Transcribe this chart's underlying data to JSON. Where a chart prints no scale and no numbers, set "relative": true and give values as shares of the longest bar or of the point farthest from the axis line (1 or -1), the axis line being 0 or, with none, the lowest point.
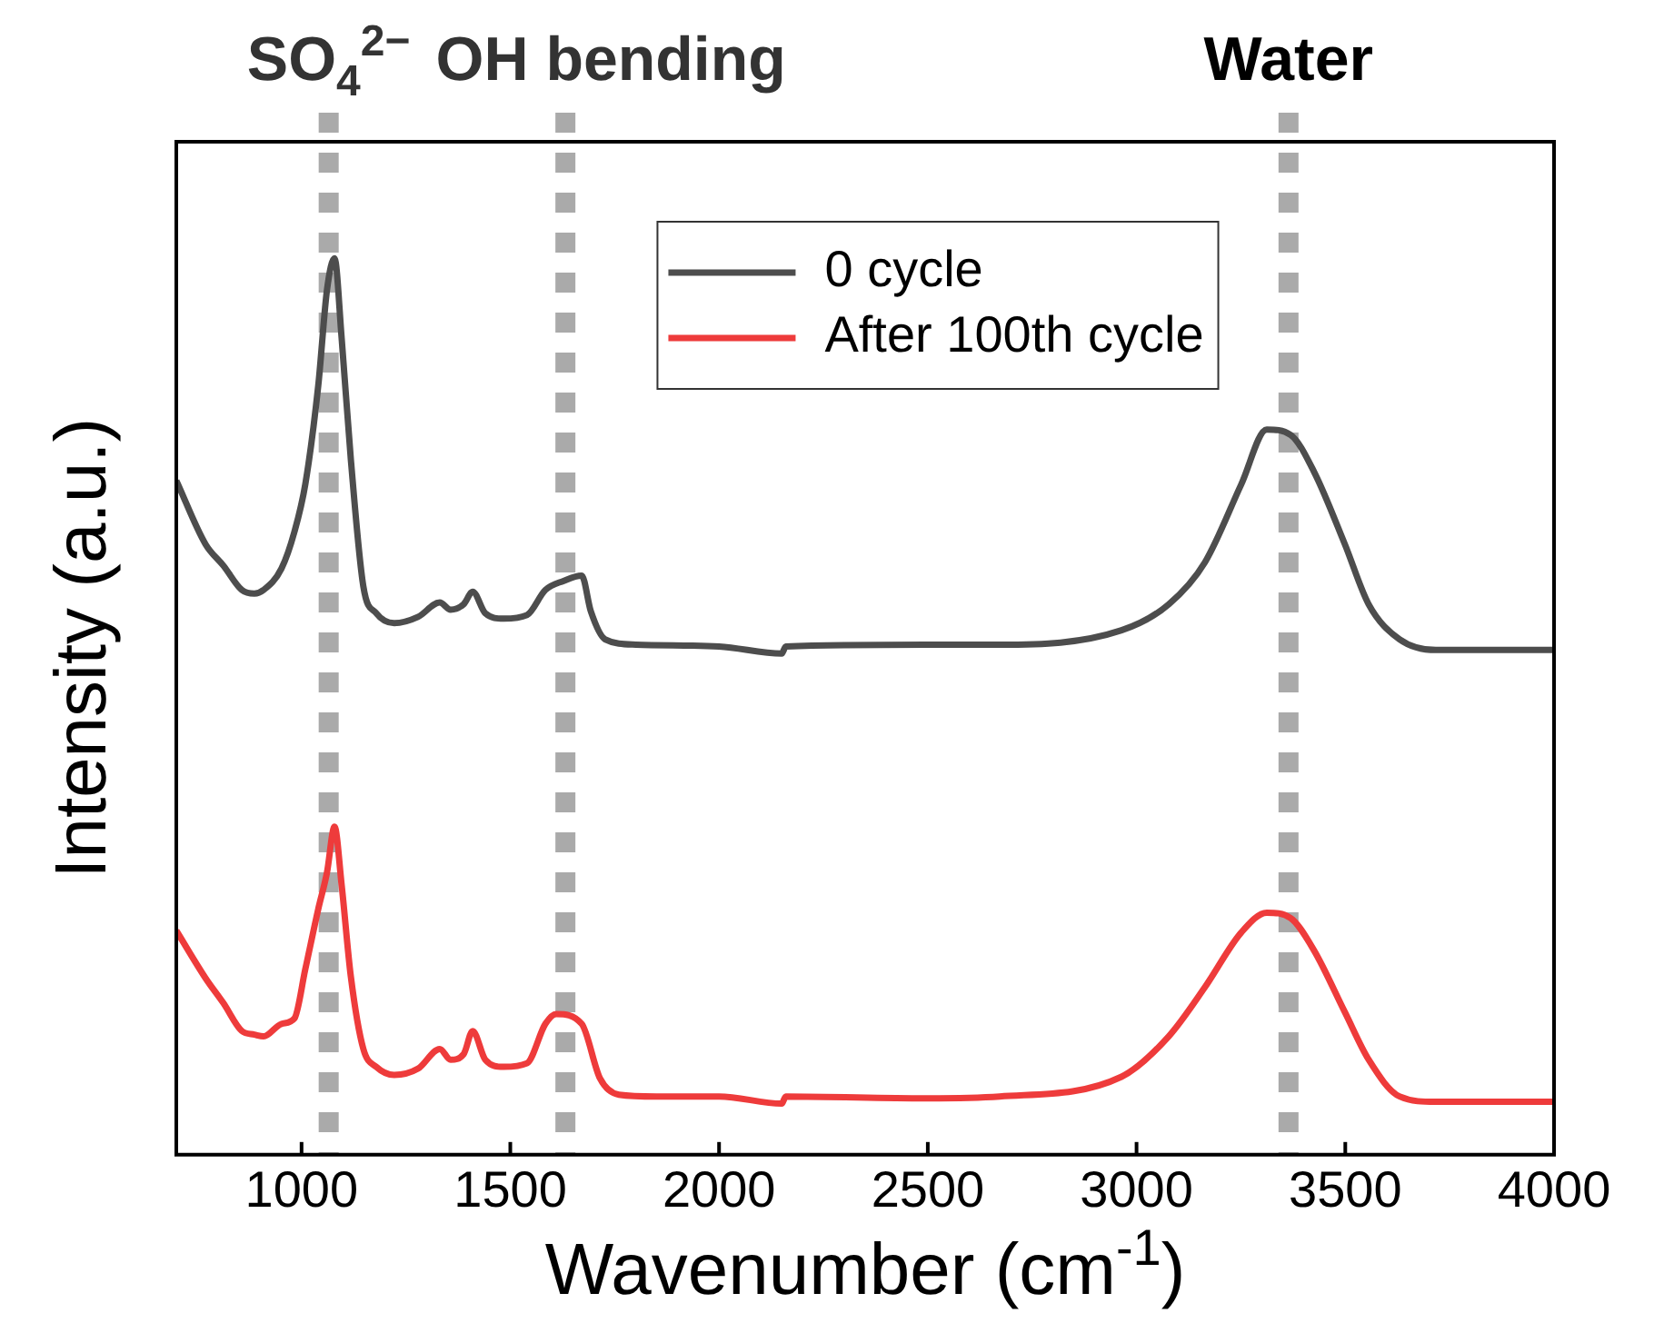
{
  "chart_data": {
    "type": "line",
    "relative": true,
    "xlabel": "Wavenumber (cm$^{-1}$)",
    "ylabel": "Intensity (a.u.)",
    "xlim": [
      700,
      4000
    ],
    "xticks": [
      1000,
      1500,
      2000,
      2500,
      3000,
      3500,
      4000
    ],
    "grid": false,
    "legend": "top",
    "line_style": "solid",
    "marker": "none",
    "series": [
      {
        "name": "0 cycle",
        "color": "#4d4d4d",
        "x": [
          700,
          770,
          813,
          857,
          887,
          909,
          952,
          983,
          1009,
          1040,
          1061,
          1079,
          1096,
          1118,
          1148,
          1179,
          1222,
          1279,
          1331,
          1357,
          1388,
          1410,
          1440,
          1484,
          1540,
          1584,
          1627,
          1671,
          1693,
          1727,
          1801,
          2000,
          2150,
          2160,
          2500,
          2672,
          2964,
          3077,
          3164,
          3251,
          3312,
          3369,
          3425,
          3499,
          3556,
          3630,
          3717,
          4000
        ],
        "values": [
          0.752,
          0.681,
          0.657,
          0.63,
          0.626,
          0.63,
          0.654,
          0.695,
          0.748,
          0.858,
          0.965,
          1.0,
          0.911,
          0.776,
          0.634,
          0.604,
          0.593,
          0.6,
          0.616,
          0.608,
          0.614,
          0.628,
          0.604,
          0.598,
          0.602,
          0.63,
          0.64,
          0.646,
          0.606,
          0.575,
          0.569,
          0.567,
          0.559,
          0.567,
          0.569,
          0.569,
          0.585,
          0.614,
          0.661,
          0.748,
          0.809,
          0.803,
          0.762,
          0.681,
          0.614,
          0.575,
          0.563,
          0.563
        ]
      },
      {
        "name": "After 100th cycle",
        "color": "#ee3b3b",
        "x": [
          700,
          770,
          813,
          857,
          887,
          909,
          952,
          983,
          1009,
          1040,
          1061,
          1079,
          1096,
          1118,
          1148,
          1179,
          1222,
          1279,
          1331,
          1357,
          1388,
          1410,
          1440,
          1484,
          1540,
          1584,
          1610,
          1671,
          1715,
          1760,
          1850,
          2000,
          2150,
          2160,
          2500,
          2672,
          2964,
          3077,
          3164,
          3251,
          3312,
          3369,
          3425,
          3499,
          3556,
          3630,
          3717,
          4000
        ],
        "values": [
          0.25,
          0.197,
          0.169,
          0.138,
          0.134,
          0.132,
          0.146,
          0.152,
          0.207,
          0.274,
          0.315,
          0.366,
          0.301,
          0.199,
          0.118,
          0.098,
          0.089,
          0.096,
          0.118,
          0.106,
          0.112,
          0.138,
          0.106,
          0.098,
          0.102,
          0.146,
          0.157,
          0.146,
          0.085,
          0.067,
          0.065,
          0.065,
          0.057,
          0.065,
          0.063,
          0.065,
          0.087,
          0.132,
          0.187,
          0.248,
          0.27,
          0.264,
          0.228,
          0.159,
          0.106,
          0.065,
          0.059,
          0.059
        ]
      }
    ],
    "ref_lines": [
      {
        "axis": "x",
        "value": 1065,
        "label": "SO$_{4}$$^{2−}$",
        "color": "#aaaaaa",
        "line_style": "dotted"
      },
      {
        "axis": "x",
        "value": 1632,
        "label": "OH bending",
        "color": "#aaaaaa",
        "line_style": "dotted"
      },
      {
        "axis": "x",
        "value": 3364,
        "label": "Water",
        "color": "#aaaaaa",
        "line_style": "dotted"
      }
    ]
  }
}
